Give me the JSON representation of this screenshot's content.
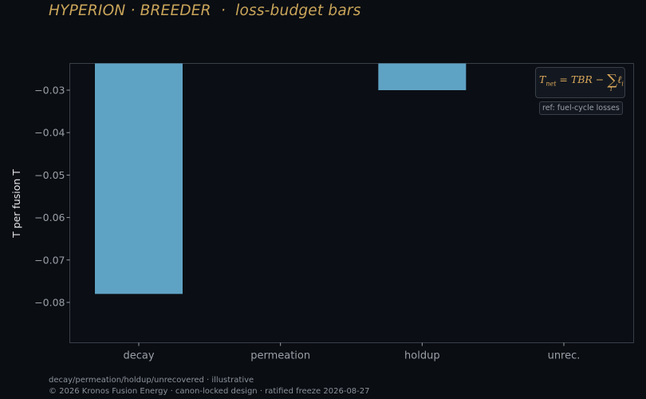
{
  "page": {
    "title": "HYPERION · BREEDER  ·  loss-budget bars",
    "footer_line1": "decay/permeation/holdup/unrecovered · illustrative",
    "footer_line2": "© 2026 Kronos Fusion Energy · canon-locked design · ratified freeze 2026-08-27"
  },
  "formula": {
    "lhs": "T",
    "lhs_sub": "net",
    "rhs_text": " = TBR − ",
    "sigma": "∑",
    "sigma_sub": "i",
    "term": "ℓ",
    "term_sub": "i"
  },
  "badge": {
    "text": "ref: fuel-cycle losses"
  },
  "colors": {
    "background": "#0a0d12",
    "plot_background": "#0b0e15",
    "bar": "#5fa3c4",
    "accent": "#c9a55a",
    "axis_text": "#9aa0a8"
  },
  "chart_data": {
    "type": "bar",
    "title": "HYPERION · BREEDER  ·  loss-budget bars",
    "xlabel": "",
    "ylabel": "T per fusion T",
    "categories": [
      "decay",
      "permeation",
      "holdup",
      "unrec."
    ],
    "values": [
      -0.078,
      null,
      -0.03,
      null
    ],
    "ylim": [
      -0.0895,
      -0.0237
    ],
    "yticks": [
      -0.03,
      -0.04,
      -0.05,
      -0.06,
      -0.07,
      -0.08
    ],
    "ytick_labels": [
      "−0.03",
      "−0.04",
      "−0.05",
      "−0.06",
      "−0.07",
      "−0.08"
    ],
    "grid": false,
    "legend": "none"
  }
}
